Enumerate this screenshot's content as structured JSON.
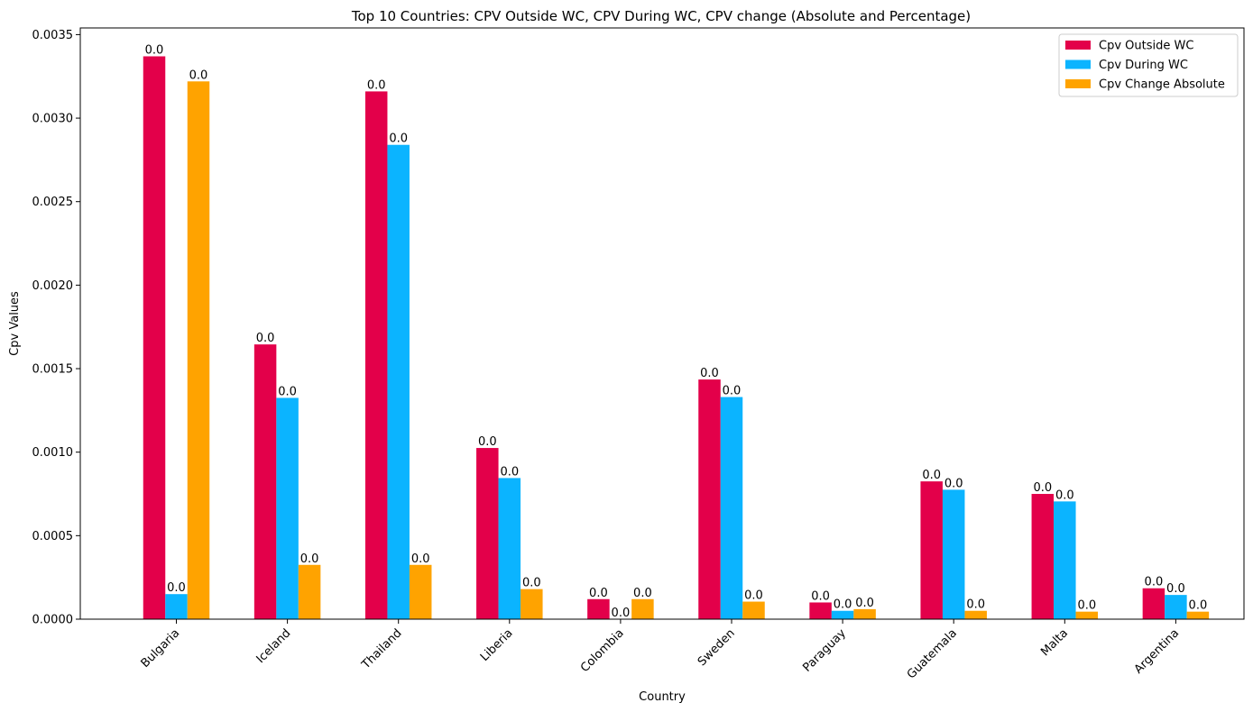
{
  "chart_data": {
    "type": "bar",
    "title": "Top 10 Countries: CPV Outside WC, CPV During WC, CPV change (Absolute and Percentage)",
    "xlabel": "Country",
    "ylabel": "Cpv Values",
    "categories": [
      "Bulgaria",
      "Iceland",
      "Thailand",
      "Liberia",
      "Colombia",
      "Sweden",
      "Paraguay",
      "Guatemala",
      "Malta",
      "Argentina"
    ],
    "series": [
      {
        "name": "Cpv Outside WC",
        "color": "#e3004a",
        "values": [
          0.00337,
          0.001645,
          0.00316,
          0.001025,
          0.00012,
          0.001435,
          0.0001,
          0.000825,
          0.00075,
          0.000185
        ],
        "labels": [
          "0.0",
          "0.0",
          "0.0",
          "0.0",
          "0.0",
          "0.0",
          "0.0",
          "0.0",
          "0.0",
          "0.0"
        ]
      },
      {
        "name": "Cpv During WC",
        "color": "#0bb4ff",
        "values": [
          0.00015,
          0.001325,
          0.00284,
          0.000845,
          0.0,
          0.00133,
          5e-05,
          0.000775,
          0.000705,
          0.000145
        ],
        "labels": [
          "0.0",
          "0.0",
          "0.0",
          "0.0",
          "0.0",
          "0.0",
          "0.0",
          "0.0",
          "0.0",
          "0.0"
        ]
      },
      {
        "name": "Cpv Change Absolute",
        "color": "#ffa300",
        "values": [
          0.00322,
          0.000325,
          0.000325,
          0.00018,
          0.00012,
          0.000105,
          6e-05,
          5e-05,
          4.5e-05,
          4.5e-05
        ],
        "labels": [
          "0.0",
          "0.0",
          "0.0",
          "0.0",
          "0.0",
          "0.0",
          "0.0",
          "0.0",
          "0.0",
          "0.0"
        ]
      }
    ],
    "ylim": [
      0,
      0.00354
    ],
    "yticks": [
      "0.0000",
      "0.0005",
      "0.0010",
      "0.0015",
      "0.0020",
      "0.0025",
      "0.0030",
      "0.0035"
    ],
    "ytick_values": [
      0,
      0.0005,
      0.001,
      0.0015,
      0.002,
      0.0025,
      0.003,
      0.0035
    ],
    "legend_position": "top-right",
    "grid": false
  }
}
